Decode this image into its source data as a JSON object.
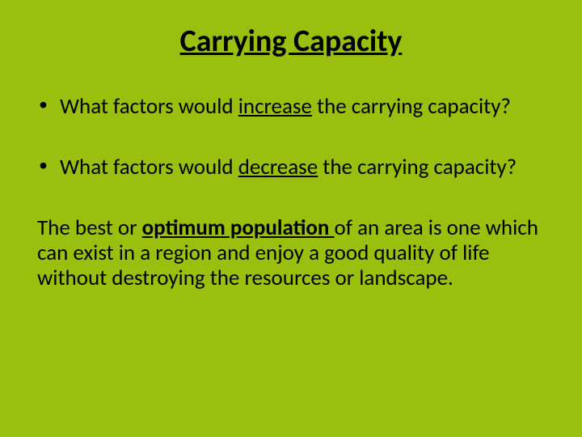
{
  "background_color": "#99bf0f",
  "text_color": "#000000",
  "font_family": "Calibri",
  "title": {
    "text": "Carrying Capacity",
    "fontsize": 38,
    "bold": true,
    "underline": true,
    "align": "center"
  },
  "bullets": [
    {
      "pre": "What factors would ",
      "key": "increase",
      "post": " the carrying capacity?",
      "key_underline": true,
      "key_bold": false
    },
    {
      "pre": "What factors would ",
      "key": "decrease",
      "post": " the carrying capacity?",
      "key_underline": true,
      "key_bold": false
    }
  ],
  "paragraph": {
    "seg1": "The best or ",
    "key": "optimum population ",
    "seg2": "of an area is one which can exist in a region and enjoy a good quality of life without destroying the resources or landscape.",
    "key_underline": true,
    "key_bold": true
  },
  "body_fontsize": 27,
  "line_height": 1.15
}
